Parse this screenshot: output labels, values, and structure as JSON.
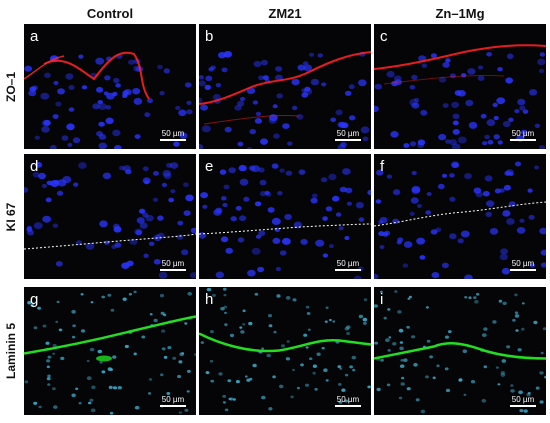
{
  "columns": [
    "Control",
    "ZM21",
    "Zn–1Mg"
  ],
  "rows": [
    "ZO–1",
    "KI 67",
    "Laminin 5"
  ],
  "panels": [
    {
      "letter": "a",
      "scale": "50 µm"
    },
    {
      "letter": "b",
      "scale": "50 µm"
    },
    {
      "letter": "c",
      "scale": "50 µm"
    },
    {
      "letter": "d",
      "scale": "50 µm"
    },
    {
      "letter": "e",
      "scale": "50 µm"
    },
    {
      "letter": "f",
      "scale": "50 µm"
    },
    {
      "letter": "g",
      "scale": "50 µm"
    },
    {
      "letter": "h",
      "scale": "50 µm"
    },
    {
      "letter": "i",
      "scale": "50 µm"
    }
  ],
  "colors": {
    "zo1_stain": "#ff2020",
    "nuclei": "#2a35ff",
    "laminin": "#22dd22",
    "nuclei_cyan": "#3fb0d0",
    "basement_line": "#ffffff"
  }
}
